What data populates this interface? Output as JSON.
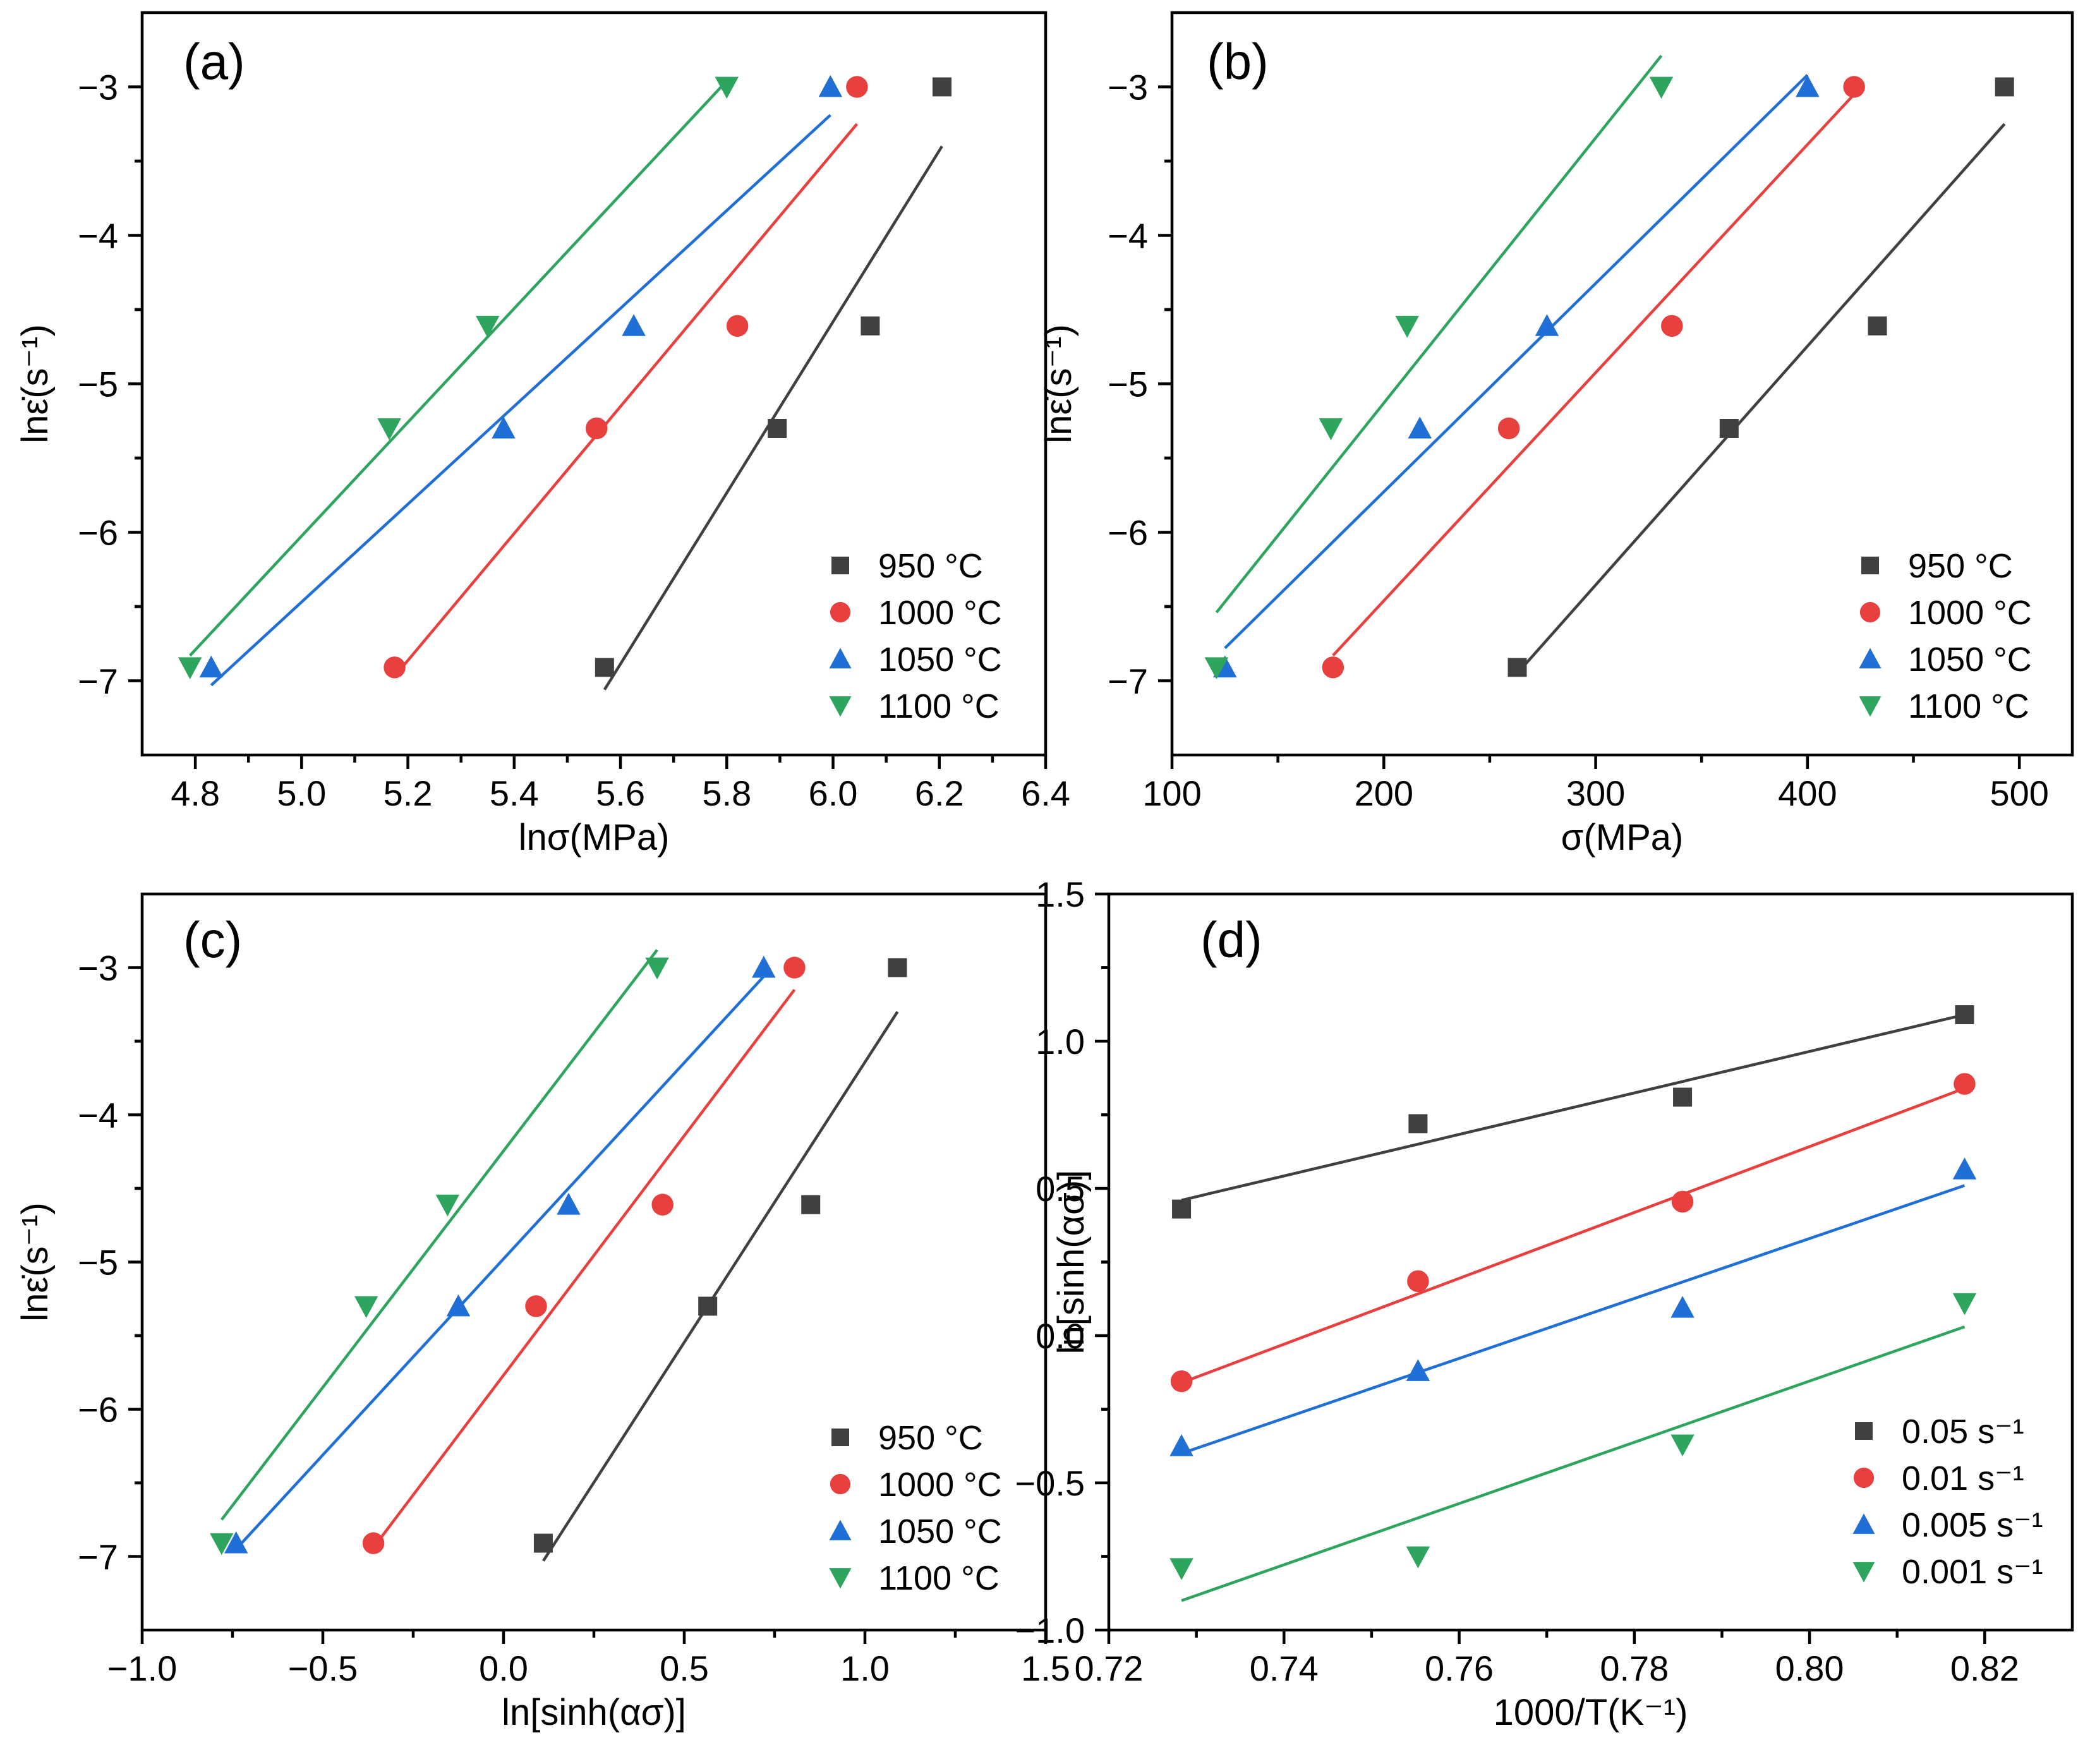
{
  "colors": {
    "black": "#404040",
    "red": "#e8403f",
    "blue": "#1f6fd6",
    "green": "#2ea55e"
  },
  "chart_data": [
    {
      "panel": "(a)",
      "type": "scatter",
      "xlabel": "lnσ(MPa)",
      "ylabel": "lnε̇(s⁻¹)",
      "xlim": [
        4.7,
        6.4
      ],
      "ylim": [
        -7.5,
        -2.5
      ],
      "xticks": [
        4.8,
        5.0,
        5.2,
        5.4,
        5.6,
        5.8,
        6.0,
        6.2,
        6.4
      ],
      "xtick_labels": [
        "4.8",
        "5.0",
        "5.2",
        "5.4",
        "5.6",
        "5.8",
        "6.0",
        "6.2",
        "6.4"
      ],
      "yticks": [
        -7,
        -6,
        -5,
        -4,
        -3
      ],
      "ytick_labels": [
        "−7",
        "−6",
        "−5",
        "−4",
        "−3"
      ],
      "legend_position": "bottom-right",
      "series": [
        {
          "name": "950 °C",
          "marker": "square",
          "color": "black",
          "x": [
            5.57,
            5.895,
            6.07,
            6.205
          ],
          "y": [
            -6.91,
            -5.3,
            -4.61,
            -3.0
          ],
          "fit": {
            "x": [
              5.57,
              6.205
            ],
            "y": [
              -7.06,
              -3.4
            ]
          }
        },
        {
          "name": "1000 °C",
          "marker": "circle",
          "color": "red",
          "x": [
            5.175,
            5.555,
            5.82,
            6.045
          ],
          "y": [
            -6.91,
            -5.3,
            -4.61,
            -3.0
          ],
          "fit": {
            "x": [
              5.175,
              6.045
            ],
            "y": [
              -6.97,
              -3.25
            ]
          }
        },
        {
          "name": "1050 °C",
          "marker": "triangle-up",
          "color": "blue",
          "x": [
            4.83,
            5.38,
            5.625,
            5.995
          ],
          "y": [
            -6.91,
            -5.3,
            -4.61,
            -3.0
          ],
          "fit": {
            "x": [
              4.83,
              5.995
            ],
            "y": [
              -7.03,
              -3.19
            ]
          }
        },
        {
          "name": "1100 °C",
          "marker": "triangle-down",
          "color": "green",
          "x": [
            4.79,
            5.165,
            5.35,
            5.8
          ],
          "y": [
            -6.91,
            -5.3,
            -4.61,
            -3.0
          ],
          "fit": {
            "x": [
              4.79,
              5.8
            ],
            "y": [
              -6.83,
              -2.96
            ]
          }
        }
      ]
    },
    {
      "panel": "(b)",
      "type": "scatter",
      "xlabel": "σ(MPa)",
      "ylabel": "lnε̇(s⁻¹)",
      "xlim": [
        100,
        525
      ],
      "ylim": [
        -7.5,
        -2.5
      ],
      "xticks": [
        100,
        200,
        300,
        400,
        500
      ],
      "xtick_labels": [
        "100",
        "200",
        "300",
        "400",
        "500"
      ],
      "yticks": [
        -7,
        -6,
        -5,
        -4,
        -3
      ],
      "ytick_labels": [
        "−7",
        "−6",
        "−5",
        "−4",
        "−3"
      ],
      "legend_position": "bottom-right",
      "series": [
        {
          "name": "950 °C",
          "marker": "square",
          "color": "black",
          "x": [
            263,
            363,
            433,
            493
          ],
          "y": [
            -6.91,
            -5.3,
            -4.61,
            -3.0
          ],
          "fit": {
            "x": [
              263,
              493
            ],
            "y": [
              -6.95,
              -3.25
            ]
          }
        },
        {
          "name": "1000 °C",
          "marker": "circle",
          "color": "red",
          "x": [
            176,
            259,
            336,
            422
          ],
          "y": [
            -6.91,
            -5.3,
            -4.61,
            -3.0
          ],
          "fit": {
            "x": [
              176,
              422
            ],
            "y": [
              -6.83,
              -3.05
            ]
          }
        },
        {
          "name": "1050 °C",
          "marker": "triangle-up",
          "color": "blue",
          "x": [
            125,
            217,
            277,
            400
          ],
          "y": [
            -6.91,
            -5.3,
            -4.61,
            -3.0
          ],
          "fit": {
            "x": [
              125,
              400
            ],
            "y": [
              -6.78,
              -2.92
            ]
          }
        },
        {
          "name": "1100 °C",
          "marker": "triangle-down",
          "color": "green",
          "x": [
            121,
            175,
            211,
            331
          ],
          "y": [
            -6.91,
            -5.3,
            -4.61,
            -3.0
          ],
          "fit": {
            "x": [
              121,
              331
            ],
            "y": [
              -6.54,
              -2.79
            ]
          }
        }
      ]
    },
    {
      "panel": "(c)",
      "type": "scatter",
      "xlabel": "ln[sinh(ασ)]",
      "ylabel": "lnε̇(s⁻¹)",
      "xlim": [
        -1.0,
        1.5
      ],
      "ylim": [
        -7.5,
        -2.5
      ],
      "xticks": [
        -1.0,
        -0.5,
        0.0,
        0.5,
        1.0,
        1.5
      ],
      "xtick_labels": [
        "−1.0",
        "−0.5",
        "0.0",
        "0.5",
        "1.0",
        "1.5"
      ],
      "yticks": [
        -7,
        -6,
        -5,
        -4,
        -3
      ],
      "ytick_labels": [
        "−7",
        "−6",
        "−5",
        "−4",
        "−3"
      ],
      "legend_position": "bottom-right",
      "series": [
        {
          "name": "950 °C",
          "marker": "square",
          "color": "black",
          "x": [
            0.11,
            0.565,
            0.85,
            1.09
          ],
          "y": [
            -6.91,
            -5.3,
            -4.61,
            -3.0
          ],
          "fit": {
            "x": [
              0.11,
              1.09
            ],
            "y": [
              -7.03,
              -3.3
            ]
          }
        },
        {
          "name": "1000 °C",
          "marker": "circle",
          "color": "red",
          "x": [
            -0.36,
            0.09,
            0.44,
            0.805
          ],
          "y": [
            -6.91,
            -5.3,
            -4.61,
            -3.0
          ],
          "fit": {
            "x": [
              -0.36,
              0.805
            ],
            "y": [
              -6.94,
              -3.15
            ]
          }
        },
        {
          "name": "1050 °C",
          "marker": "triangle-up",
          "color": "blue",
          "x": [
            -0.74,
            -0.125,
            0.18,
            0.72
          ],
          "y": [
            -6.91,
            -5.3,
            -4.61,
            -3.0
          ],
          "fit": {
            "x": [
              -0.74,
              0.72
            ],
            "y": [
              -6.95,
              -3.06
            ]
          }
        },
        {
          "name": "1100 °C",
          "marker": "triangle-down",
          "color": "green",
          "x": [
            -0.78,
            -0.38,
            -0.155,
            0.425
          ],
          "y": [
            -6.91,
            -5.3,
            -4.61,
            -3.0
          ],
          "fit": {
            "x": [
              -0.78,
              0.425
            ],
            "y": [
              -6.75,
              -2.88
            ]
          }
        }
      ]
    },
    {
      "panel": "(d)",
      "type": "scatter",
      "xlabel": "1000/T(K⁻¹)",
      "ylabel": "ln[sinh(ασ)]",
      "xlim": [
        0.72,
        0.83
      ],
      "ylim": [
        -1.0,
        1.5
      ],
      "xticks": [
        0.72,
        0.74,
        0.76,
        0.78,
        0.8,
        0.82
      ],
      "xtick_labels": [
        "0.72",
        "0.74",
        "0.76",
        "0.78",
        "0.80",
        "0.82"
      ],
      "yticks": [
        -1.0,
        -0.5,
        0.0,
        0.5,
        1.0,
        1.5
      ],
      "ytick_labels": [
        "−1.0",
        "−0.5",
        "0.0",
        "0.5",
        "1.0",
        "1.5"
      ],
      "legend_position": "bottom-right",
      "series": [
        {
          "name": "0.05 s⁻¹",
          "marker": "square",
          "color": "black",
          "x": [
            0.7283,
            0.7553,
            0.7855,
            0.8177
          ],
          "y": [
            0.43,
            0.72,
            0.81,
            1.09
          ],
          "fit": {
            "x": [
              0.7283,
              0.8177
            ],
            "y": [
              0.46,
              1.09
            ]
          }
        },
        {
          "name": "0.01 s⁻¹",
          "marker": "circle",
          "color": "red",
          "x": [
            0.7283,
            0.7553,
            0.7855,
            0.8177
          ],
          "y": [
            -0.155,
            0.185,
            0.455,
            0.855
          ],
          "fit": {
            "x": [
              0.7283,
              0.8177
            ],
            "y": [
              -0.16,
              0.84
            ]
          }
        },
        {
          "name": "0.005 s⁻¹",
          "marker": "triangle-up",
          "color": "blue",
          "x": [
            0.7283,
            0.7553,
            0.7855,
            0.8177
          ],
          "y": [
            -0.375,
            -0.12,
            0.095,
            0.565
          ],
          "fit": {
            "x": [
              0.7283,
              0.8177
            ],
            "y": [
              -0.4,
              0.51
            ]
          }
        },
        {
          "name": "0.001 s⁻¹",
          "marker": "triangle-down",
          "color": "green",
          "x": [
            0.7283,
            0.7553,
            0.7855,
            0.8177
          ],
          "y": [
            -0.79,
            -0.75,
            -0.37,
            0.11
          ],
          "fit": {
            "x": [
              0.7283,
              0.8177
            ],
            "y": [
              -0.9,
              0.03
            ]
          }
        }
      ]
    }
  ]
}
